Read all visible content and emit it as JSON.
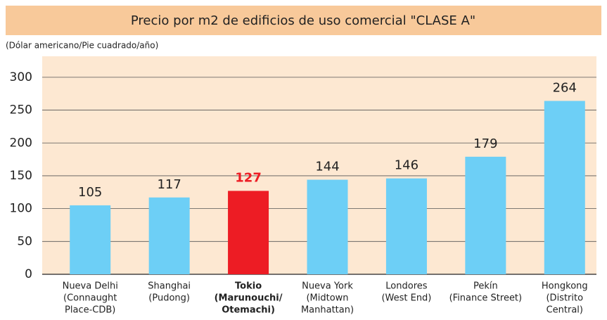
{
  "chart_data": {
    "type": "bar",
    "title": "Precio por m2 de edificios de uso comercial \"CLASE A\"",
    "subtitle": "(Dólar americano/Pie cuadrado/año)",
    "categories": [
      [
        "Nueva Delhi",
        "(Connaught",
        "Place-CDB)"
      ],
      [
        "Shanghai",
        "(Pudong)"
      ],
      [
        "Tokio",
        "(Marunouchi/",
        "Otemachi)"
      ],
      [
        "Nueva York",
        "(Midtown",
        "Manhattan)"
      ],
      [
        "Londores",
        "(West End)"
      ],
      [
        "Pekín",
        "(Finance Street)"
      ],
      [
        "Hongkong",
        "(Distrito",
        "Central)"
      ]
    ],
    "values": [
      105,
      117,
      127,
      144,
      146,
      179,
      264
    ],
    "color": "#6dcff6",
    "highlight": 2,
    "highlight_color": "#ed1c24",
    "ylim": [
      0,
      332
    ],
    "yticks": [
      0,
      50,
      100,
      150,
      200,
      250,
      300
    ],
    "grid": true
  }
}
